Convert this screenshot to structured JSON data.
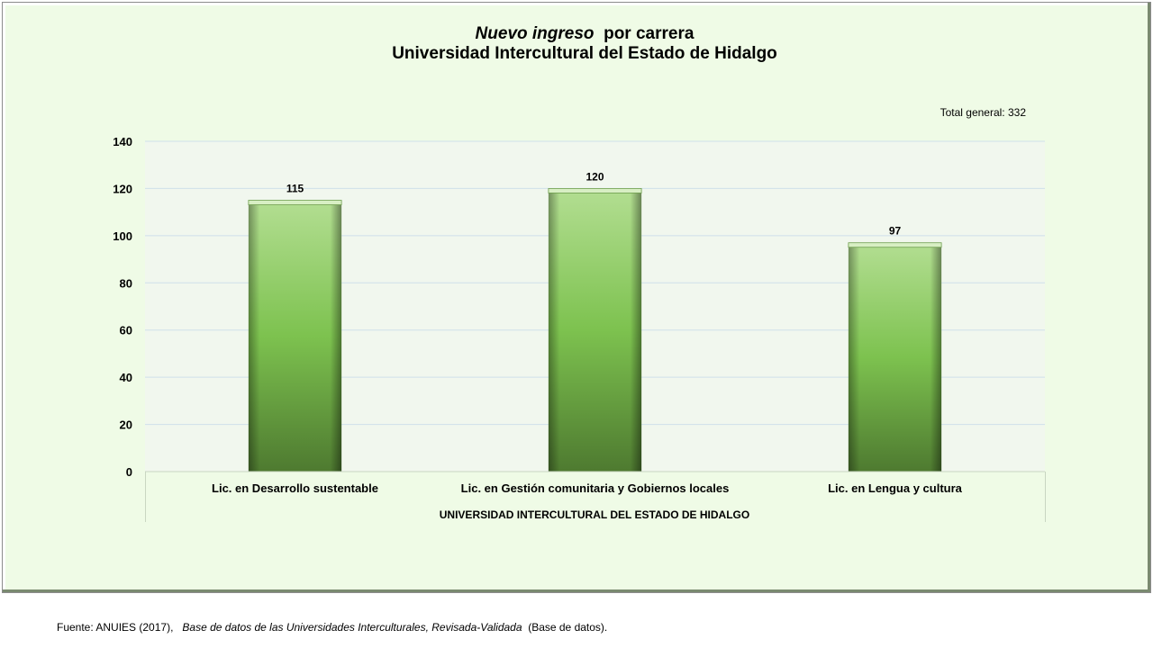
{
  "chart_data": {
    "type": "bar",
    "title_italic": "Nuevo ingreso",
    "title_rest": "por carrera",
    "subtitle": "Universidad Intercultural del Estado de Hidalgo",
    "total_label": "Total general: 332",
    "categories": [
      "Lic. en Desarrollo sustentable",
      "Lic. en Gestión comunitaria y Gobiernos locales",
      "Lic. en Lengua y cultura"
    ],
    "values": [
      115,
      120,
      97
    ],
    "group_label": "UNIVERSIDAD INTERCULTURAL DEL ESTADO DE HIDALGO",
    "ylim": [
      0,
      140
    ],
    "yticks": [
      0,
      20,
      40,
      60,
      80,
      100,
      120,
      140
    ],
    "grid": true,
    "bar_color": "#7dc24f"
  },
  "source": {
    "prefix": "Fuente: ANUIES (2017),",
    "italic": "Base de datos de las Universidades  Interculturales, Revisada-Validada",
    "suffix": "(Base de datos)."
  }
}
